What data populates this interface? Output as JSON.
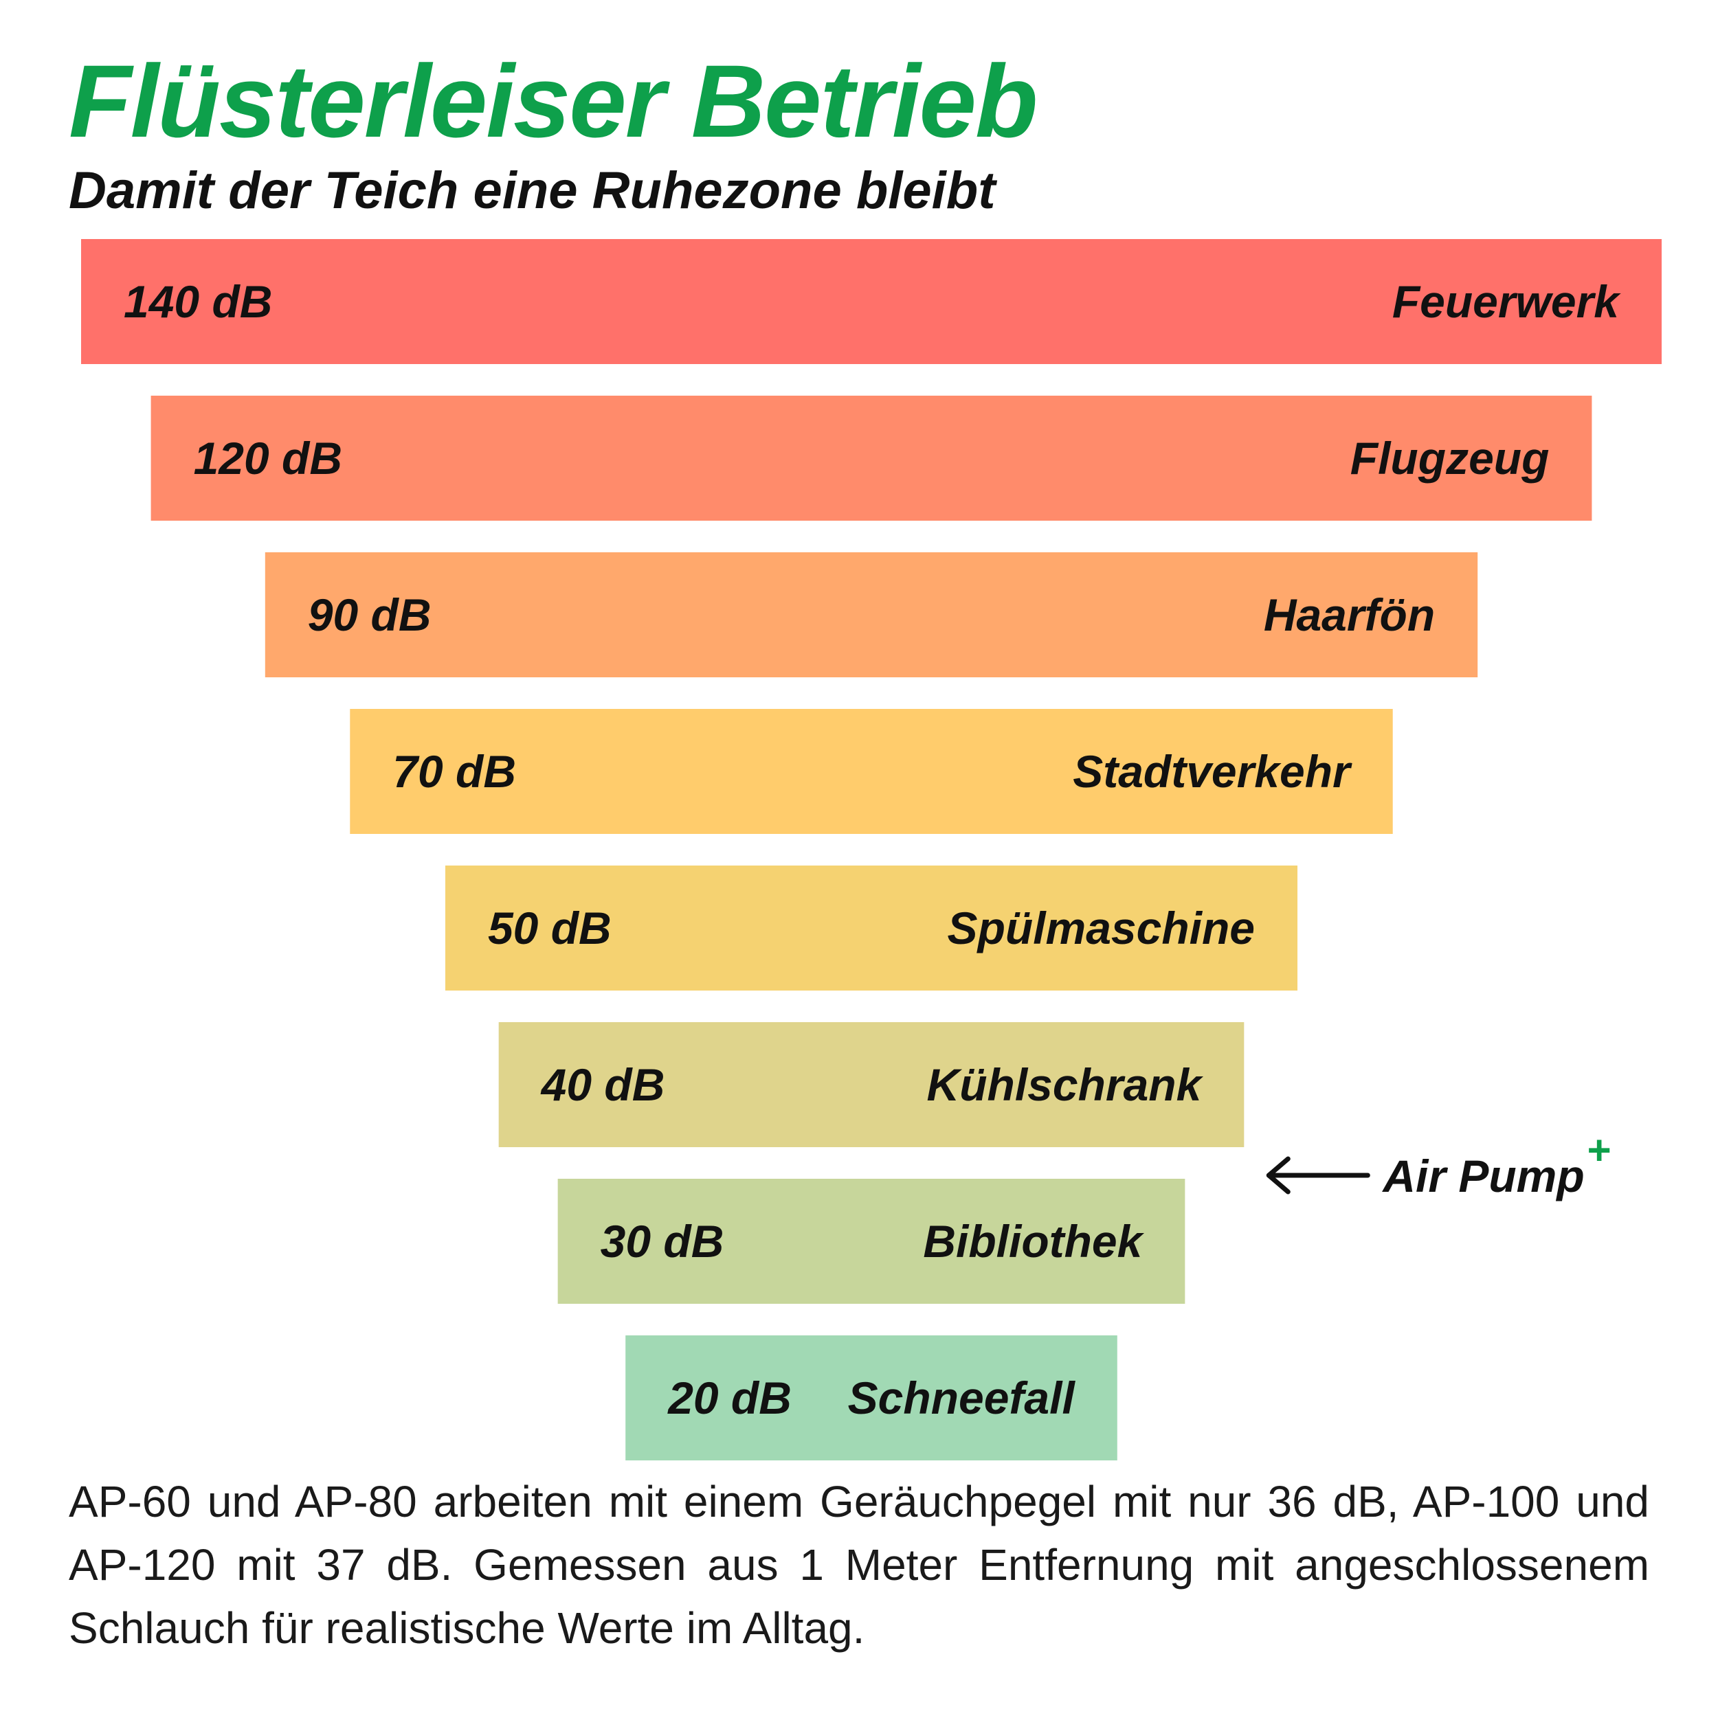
{
  "header": {
    "title": "Flüsterleiser Betrieb",
    "subtitle": "Damit der Teich eine Ruhezone bleibt"
  },
  "chart_data": {
    "type": "bar",
    "orientation": "horizontal funnel",
    "unit": "dB",
    "categories": [
      "Feuerwerk",
      "Flugzeug",
      "Haarfön",
      "Stadtverkehr",
      "Spülmaschine",
      "Kühlschrank",
      "Bibliothek",
      "Schneefall"
    ],
    "values": [
      140,
      120,
      90,
      70,
      50,
      40,
      30,
      20
    ],
    "value_labels": [
      "140 dB",
      "120 dB",
      "90 dB",
      "70 dB",
      "50 dB",
      "40 dB",
      "30 dB",
      "20 dB"
    ],
    "colors": [
      "#ff716a",
      "#ff8b6b",
      "#ffa86c",
      "#ffcc6c",
      "#f5d271",
      "#dfd48c",
      "#c7d69b",
      "#a1d9b4"
    ],
    "annotation": {
      "text": "Air Pump",
      "superscript": "+",
      "position_between": [
        "Kühlschrank",
        "Bibliothek"
      ],
      "arrow": "left"
    },
    "grid": false,
    "legend": "none"
  },
  "footnote": "AP-60 und AP-80 arbeiten mit einem Geräuchpegel mit nur 36 dB, AP-100 und AP-120 mit 37 dB. Gemessen aus 1 Meter Entfernung mit angeschlossenem Schlauch für realistische Werte im Alltag.",
  "colors": {
    "accent_green": "#0ea04b",
    "text": "#111111"
  }
}
